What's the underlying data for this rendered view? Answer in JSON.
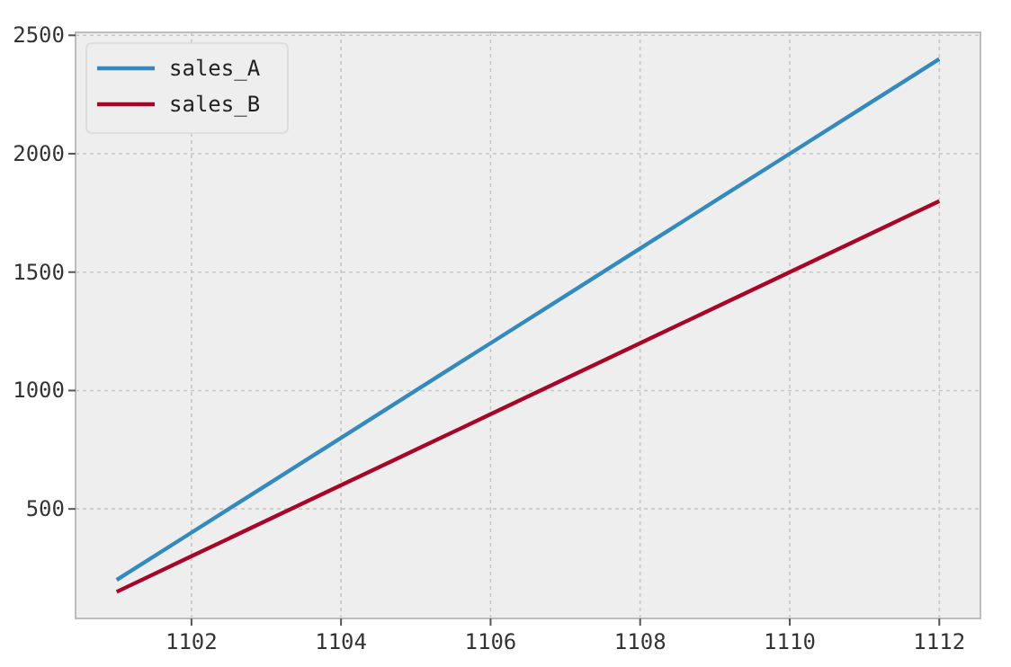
{
  "chart_data": {
    "type": "line",
    "x": [
      1101,
      1102,
      1103,
      1104,
      1105,
      1106,
      1107,
      1108,
      1109,
      1110,
      1111,
      1112
    ],
    "series": [
      {
        "name": "sales_A",
        "color": "#348abd",
        "values": [
          200,
          400,
          600,
          800,
          1000,
          1200,
          1400,
          1600,
          1800,
          2000,
          2200,
          2400
        ]
      },
      {
        "name": "sales_B",
        "color": "#a60628",
        "values": [
          150,
          300,
          450,
          600,
          750,
          900,
          1050,
          1200,
          1350,
          1500,
          1650,
          1800
        ]
      }
    ],
    "xlim": [
      1100.45,
      1112.55
    ],
    "xticks": [
      1102,
      1104,
      1106,
      1108,
      1110,
      1112
    ],
    "ylim": [
      37.5,
      2512.5
    ],
    "yticks": [
      500,
      1000,
      1500,
      2000,
      2500
    ],
    "grid": true,
    "legend": "top left",
    "marker": "none",
    "line_style": "solid"
  }
}
